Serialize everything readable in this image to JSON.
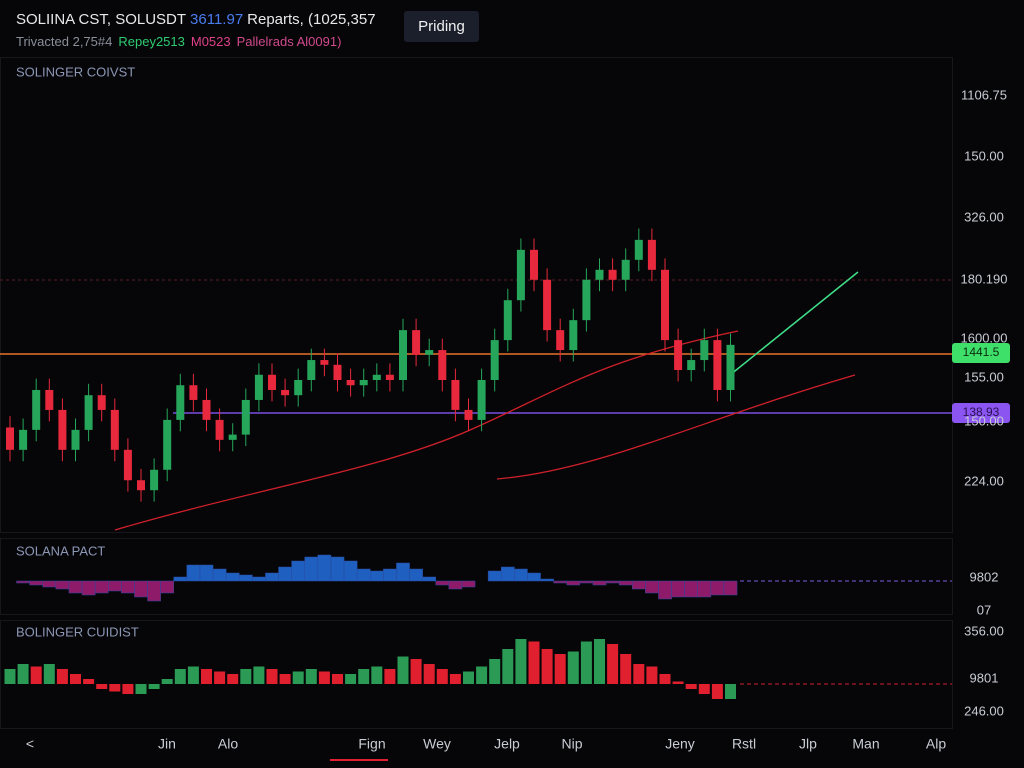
{
  "header": {
    "symbol": "SOLIINA CST, SOLUSDT",
    "price": "3611.97",
    "info": "Reparts, (1025,357",
    "stats": [
      "Trivacted 2,75#4",
      "Repey2513",
      "M0523",
      "Pallelrads Al0091)"
    ],
    "button": "Priding"
  },
  "chart_data": [
    {
      "type": "candlestick",
      "title": "SOLINGER COIVST",
      "ylim": [
        0,
        100
      ],
      "open": [
        22.0,
        17.3,
        21.5,
        29.9,
        25.7,
        17.3,
        21.5,
        28.8,
        25.7,
        17.3,
        10.9,
        8.8,
        13.1,
        23.6,
        30.9,
        27.8,
        23.6,
        19.4,
        20.5,
        27.8,
        33.1,
        29.9,
        28.8,
        32.0,
        36.2,
        35.2,
        32.0,
        30.9,
        32.0,
        33.1,
        32.0,
        42.5,
        37.3,
        38.3,
        32.0,
        25.7,
        23.6,
        32.0,
        40.4,
        48.8,
        59.4,
        53.1,
        42.5,
        38.3,
        44.6,
        53.1,
        55.2,
        53.1,
        57.3,
        61.5,
        55.2,
        40.4,
        34.1,
        36.2,
        40.4,
        29.9
      ],
      "high": [
        24.4,
        23.9,
        32.3,
        32.3,
        28.1,
        23.9,
        31.2,
        31.2,
        28.1,
        19.7,
        13.3,
        15.5,
        26.0,
        33.3,
        33.3,
        30.2,
        26.0,
        22.9,
        30.2,
        35.5,
        35.5,
        32.3,
        34.4,
        38.6,
        38.6,
        37.6,
        34.4,
        34.4,
        35.5,
        35.5,
        44.9,
        44.9,
        40.7,
        40.7,
        34.4,
        28.1,
        34.4,
        42.8,
        51.2,
        61.8,
        61.8,
        55.5,
        44.9,
        47.0,
        55.5,
        57.6,
        57.6,
        59.7,
        63.9,
        63.9,
        57.6,
        42.8,
        38.6,
        42.8,
        42.8,
        41.8
      ],
      "low": [
        14.9,
        14.9,
        19.1,
        23.3,
        14.9,
        14.9,
        19.1,
        23.3,
        14.9,
        8.5,
        6.4,
        6.4,
        10.7,
        21.2,
        25.4,
        21.2,
        17.0,
        17.0,
        18.1,
        25.4,
        27.5,
        26.4,
        26.4,
        29.6,
        32.8,
        29.6,
        28.5,
        28.5,
        29.6,
        29.6,
        29.6,
        34.9,
        34.9,
        29.6,
        23.3,
        21.2,
        21.2,
        29.6,
        38.0,
        46.4,
        50.7,
        40.1,
        35.9,
        35.9,
        42.2,
        50.7,
        50.7,
        50.7,
        54.9,
        52.8,
        38.0,
        31.7,
        31.7,
        33.8,
        27.5,
        27.5
      ],
      "close": [
        17.3,
        21.5,
        29.9,
        25.7,
        17.3,
        21.5,
        28.8,
        25.7,
        17.3,
        10.9,
        8.8,
        13.1,
        23.6,
        30.9,
        27.8,
        23.6,
        19.4,
        20.5,
        27.8,
        33.1,
        29.9,
        28.8,
        32.0,
        36.2,
        35.2,
        32.0,
        30.9,
        32.0,
        33.1,
        32.0,
        42.5,
        37.3,
        38.3,
        32.0,
        25.7,
        23.6,
        32.0,
        40.4,
        48.8,
        59.4,
        53.1,
        42.5,
        38.3,
        44.6,
        53.1,
        55.2,
        53.1,
        57.3,
        61.5,
        55.2,
        40.4,
        34.1,
        36.2,
        40.4,
        29.9,
        39.4
      ],
      "up_color": "#26a65b",
      "down_color": "#e8283c",
      "axis_labels": [
        "1106.75",
        "150.00",
        "326.00",
        "180.190",
        "1600.00",
        "155.00",
        "150.00",
        "224.00"
      ],
      "level_labels": [
        "1441.5",
        "138.93"
      ]
    },
    {
      "type": "oscillator",
      "title": "SOLANA PACT",
      "ylim": [
        -8,
        8
      ],
      "values": [
        0,
        -0.5,
        -1,
        -1.5,
        -2,
        -3,
        -3.5,
        -3,
        -2.5,
        -3,
        -4,
        -5,
        -3,
        1,
        4,
        4,
        3,
        2,
        1.5,
        1,
        2,
        3.5,
        5,
        6,
        6.5,
        6,
        5,
        3,
        2.5,
        3,
        4.5,
        3,
        1,
        -1,
        -2,
        -1.5,
        0,
        2.5,
        3.5,
        3,
        2,
        0.5,
        -0.5,
        -1,
        -0.5,
        -1,
        -0.5,
        -1,
        -2,
        -3,
        -4.5,
        -4,
        -4,
        -4,
        -3.5,
        -3.5
      ],
      "up_color": "#1f5fbf",
      "down_color": "#8e1a6a",
      "axis_labels": [
        "9802",
        "07"
      ]
    },
    {
      "type": "histogram",
      "title": "BOLINGER CUIDIST",
      "ylim": [
        -10,
        10
      ],
      "values": [
        3,
        4,
        3.5,
        4,
        3,
        2,
        1,
        -1,
        -1.5,
        -2,
        -2,
        -1,
        1,
        3,
        3.5,
        3,
        2.5,
        2,
        3,
        3.5,
        3,
        2,
        2.5,
        3,
        2.5,
        2,
        2,
        3,
        3.5,
        3,
        5.5,
        5,
        4,
        3,
        2,
        2.5,
        3.5,
        5,
        7,
        9,
        8.5,
        7,
        6,
        6.5,
        8.5,
        9,
        8,
        6,
        4,
        3.5,
        2,
        0.5,
        -1,
        -2,
        -3,
        -3
      ],
      "up_color": "#2a9a55",
      "down_color": "#e0202e",
      "axis_labels": [
        "356.00",
        "9801",
        "246.00"
      ]
    }
  ],
  "x_axis_labels": [
    "<",
    "Jin",
    "Alo",
    "Fign",
    "Wey",
    "Jelp",
    "Nip",
    "Jeny",
    "Rstl",
    "Jlp",
    "Man",
    "Alp"
  ]
}
